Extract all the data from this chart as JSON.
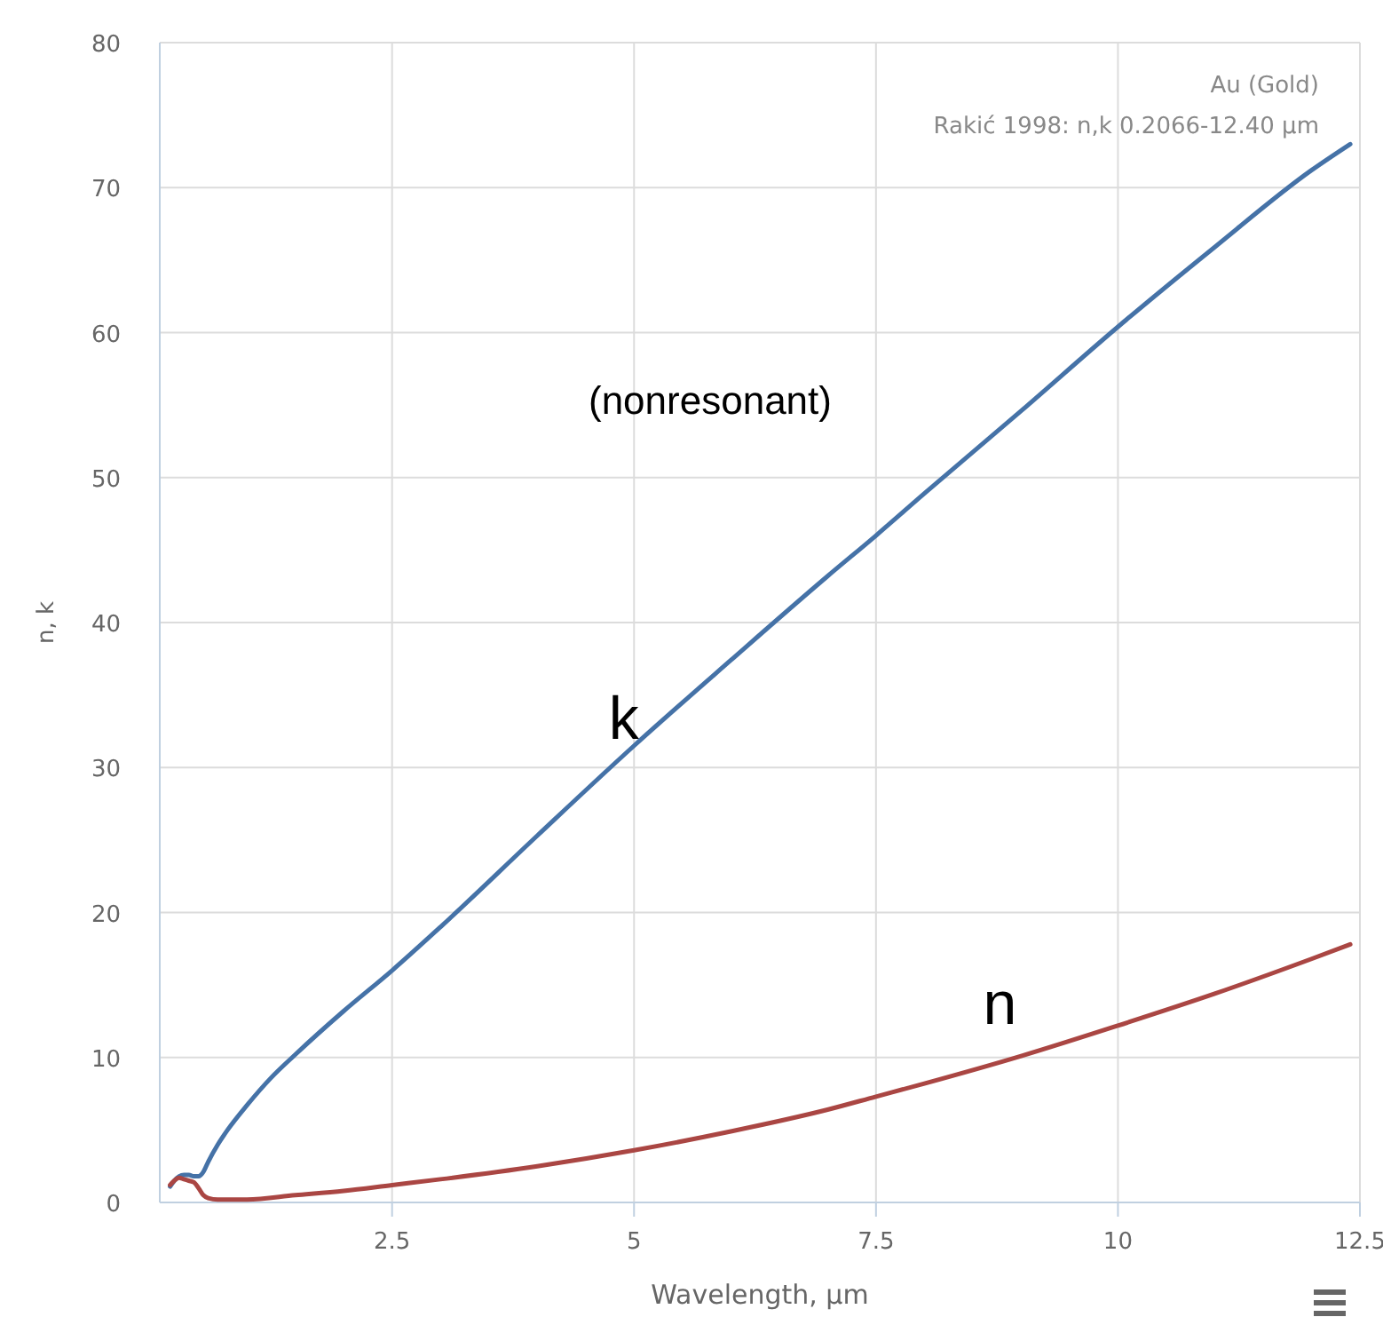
{
  "chart_data": {
    "type": "line",
    "xlabel": "Wavelength, µm",
    "ylabel": "n, k",
    "annotations": [
      "Au (Gold)",
      "Rakić 1998: n,k 0.2066-12.40 µm",
      "(nonresonant)"
    ],
    "xlim": [
      0.1,
      12.5
    ],
    "xticks": [
      2.5,
      5,
      7.5,
      10,
      12.5
    ],
    "ylim": [
      0,
      80
    ],
    "yticks": [
      0,
      10,
      20,
      30,
      40,
      50,
      60,
      70,
      80
    ],
    "grid": true,
    "marker": "none",
    "line_style": "solid",
    "series": [
      {
        "name": "k",
        "color": "#4572a7",
        "x": [
          0.2066,
          0.25,
          0.3,
          0.35,
          0.4,
          0.45,
          0.5,
          0.55,
          0.6,
          0.7,
          0.8,
          1,
          1.25,
          1.5,
          2,
          2.5,
          3,
          4,
          5,
          6,
          7,
          7.5,
          8,
          9,
          10,
          11,
          12,
          12.4
        ],
        "values": [
          1.1,
          1.5,
          1.8,
          1.9,
          1.9,
          1.8,
          1.8,
          2.1,
          2.8,
          4.0,
          5.0,
          6.7,
          8.6,
          10.2,
          13.2,
          16,
          19,
          25.3,
          31.5,
          37.4,
          43.2,
          46,
          48.9,
          54.6,
          60.4,
          65.9,
          71.2,
          73
        ]
      },
      {
        "name": "n",
        "color": "#aa4643",
        "x": [
          0.2066,
          0.25,
          0.3,
          0.35,
          0.4,
          0.45,
          0.5,
          0.55,
          0.6,
          0.7,
          0.8,
          1,
          1.5,
          2,
          2.5,
          3,
          4,
          5,
          6,
          7,
          7.5,
          8,
          9,
          10,
          11,
          12,
          12.4
        ],
        "values": [
          1.2,
          1.5,
          1.7,
          1.6,
          1.5,
          1.4,
          1.0,
          0.5,
          0.3,
          0.2,
          0.2,
          0.2,
          0.5,
          0.8,
          1.2,
          1.6,
          2.5,
          3.6,
          4.9,
          6.4,
          7.3,
          8.2,
          10.1,
          12.2,
          14.4,
          16.8,
          17.8
        ]
      }
    ]
  }
}
